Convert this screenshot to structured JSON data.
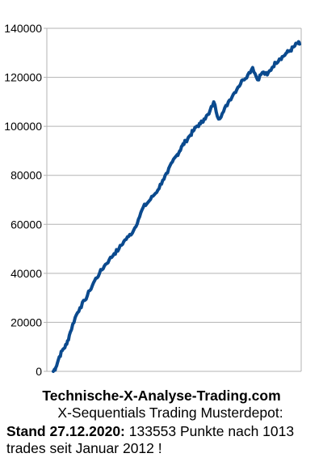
{
  "chart_data": {
    "type": "line",
    "title": "",
    "xlabel": "",
    "ylabel": "",
    "ylim": [
      0,
      140000
    ],
    "y_ticks": [
      "0",
      "20000",
      "40000",
      "60000",
      "80000",
      "100000",
      "120000",
      "140000"
    ],
    "grid": true,
    "legend": "none",
    "line_color": "#0b4a8e",
    "series": [
      {
        "x": [
          0,
          10,
          25,
          40,
          55,
          70,
          90,
          110,
          130,
          150,
          170,
          190,
          210,
          230,
          250,
          270,
          290,
          310,
          330,
          350,
          370,
          390,
          410,
          430,
          450,
          470,
          490,
          510,
          520,
          530,
          545,
          560,
          575,
          590,
          605,
          620,
          640,
          660,
          680,
          700,
          720,
          740,
          760,
          780,
          800,
          820,
          840,
          860,
          880,
          900,
          915,
          930,
          945,
          960,
          975,
          990,
          1005,
          1013
        ],
        "values": [
          0,
          1500,
          6000,
          9000,
          11000,
          16000,
          22000,
          26000,
          29000,
          33000,
          37000,
          40000,
          43000,
          45500,
          48000,
          50000,
          53000,
          55000,
          57500,
          62000,
          67000,
          69000,
          71500,
          74000,
          78000,
          81000,
          85500,
          88500,
          90000,
          92000,
          94000,
          96000,
          98000,
          100000,
          101000,
          103000,
          105000,
          110000,
          103000,
          106000,
          110000,
          113000,
          116000,
          119000,
          121000,
          124000,
          119000,
          122000,
          121000,
          124000,
          126000,
          127500,
          128500,
          130000,
          131000,
          132500,
          134000,
          133553
        ]
      }
    ]
  },
  "caption": {
    "site": "Technische-X-Analyse-Trading.com",
    "subtitle": "X-Sequentials Trading Musterdepot:",
    "status_label": "Stand 27.12.2020:",
    "status_text": " 133553 Punkte nach 1013 trades seit Januar 2012 !"
  }
}
